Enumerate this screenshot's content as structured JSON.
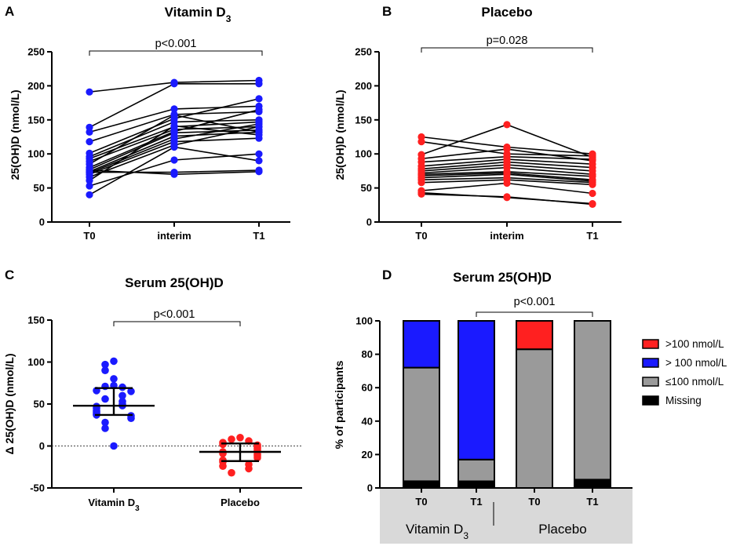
{
  "chart_data": [
    {
      "panel": "A",
      "type": "line",
      "title": "Vitamin D",
      "title_sub": "3",
      "xlabel": "",
      "ylabel": "25(OH)D (nmol/L)",
      "categories": [
        "T0",
        "interim",
        "T1"
      ],
      "ylim": [
        0,
        250
      ],
      "yticks": [
        0,
        50,
        100,
        150,
        200,
        250
      ],
      "marker_color": "#1a1aff",
      "p_label": "p<0.001",
      "series": [
        {
          "name": "1",
          "values": [
            191,
            205,
            208
          ]
        },
        {
          "name": "2",
          "values": [
            139,
            203,
            203
          ]
        },
        {
          "name": "3",
          "values": [
            132,
            166,
            170
          ]
        },
        {
          "name": "4",
          "values": [
            118,
            158,
            162
          ]
        },
        {
          "name": "5",
          "values": [
            101,
            152,
            181
          ]
        },
        {
          "name": "6",
          "values": [
            96,
            147,
            150
          ]
        },
        {
          "name": "7",
          "values": [
            93,
            140,
            147
          ]
        },
        {
          "name": "8",
          "values": [
            89,
            136,
            140
          ]
        },
        {
          "name": "9",
          "values": [
            80,
            133,
            165
          ]
        },
        {
          "name": "10",
          "values": [
            77,
            131,
            135
          ]
        },
        {
          "name": "11",
          "values": [
            74,
            126,
            132
          ]
        },
        {
          "name": "12",
          "values": [
            72,
            122,
            144
          ]
        },
        {
          "name": "13",
          "values": [
            70,
            118,
            123
          ]
        },
        {
          "name": "14",
          "values": [
            66,
            113,
            140
          ]
        },
        {
          "name": "15",
          "values": [
            76,
            70,
            74
          ]
        },
        {
          "name": "16",
          "values": [
            73,
            73,
            76
          ]
        },
        {
          "name": "17",
          "values": [
            53,
            91,
            100
          ]
        },
        {
          "name": "18",
          "values": [
            40,
            110,
            90
          ]
        },
        {
          "name": "19",
          "values": [
            61,
            141,
            128
          ]
        },
        {
          "name": "20",
          "values": [
            85,
            157,
            132
          ]
        }
      ]
    },
    {
      "panel": "B",
      "type": "line",
      "title": "Placebo",
      "xlabel": "",
      "ylabel": "25(OH)D (nmol/L)",
      "categories": [
        "T0",
        "interim",
        "T1"
      ],
      "ylim": [
        0,
        250
      ],
      "yticks": [
        0,
        50,
        100,
        150,
        200,
        250
      ],
      "marker_color": "#ff2020",
      "p_label": "p=0.028",
      "series": [
        {
          "name": "1",
          "values": [
            125,
            110,
            100
          ]
        },
        {
          "name": "2",
          "values": [
            118,
            100,
            97
          ]
        },
        {
          "name": "3",
          "values": [
            99,
            143,
            95
          ]
        },
        {
          "name": "4",
          "values": [
            93,
            107,
            90
          ]
        },
        {
          "name": "5",
          "values": [
            88,
            96,
            92
          ]
        },
        {
          "name": "6",
          "values": [
            82,
            92,
            85
          ]
        },
        {
          "name": "7",
          "values": [
            78,
            88,
            80
          ]
        },
        {
          "name": "8",
          "values": [
            75,
            84,
            75
          ]
        },
        {
          "name": "9",
          "values": [
            72,
            80,
            70
          ]
        },
        {
          "name": "10",
          "values": [
            70,
            74,
            67
          ]
        },
        {
          "name": "11",
          "values": [
            68,
            72,
            62
          ]
        },
        {
          "name": "12",
          "values": [
            65,
            70,
            60
          ]
        },
        {
          "name": "13",
          "values": [
            62,
            65,
            58
          ]
        },
        {
          "name": "14",
          "values": [
            58,
            62,
            55
          ]
        },
        {
          "name": "15",
          "values": [
            46,
            57,
            42
          ]
        },
        {
          "name": "16",
          "values": [
            43,
            36,
            27
          ]
        },
        {
          "name": "17",
          "values": [
            41,
            37,
            26
          ]
        }
      ]
    },
    {
      "panel": "C",
      "type": "scatter",
      "title": "Serum 25(OH)D",
      "xlabel": "",
      "ylabel": "Δ 25(OH)D (nmol/L)",
      "categories": [
        "Vitamin D",
        "Placebo"
      ],
      "category_sub": [
        "3",
        ""
      ],
      "ylim": [
        -50,
        150
      ],
      "yticks": [
        -50,
        0,
        50,
        100,
        150
      ],
      "p_label": "p<0.001",
      "groups": [
        {
          "name": "Vitamin D3",
          "color": "#1a1aff",
          "median": 48,
          "iqr": [
            37,
            69
          ],
          "points": [
            101,
            97,
            90,
            80,
            72,
            71,
            70,
            66,
            65,
            60,
            56,
            53,
            50,
            48,
            47,
            45,
            42,
            40,
            38,
            37,
            36,
            33,
            28,
            21,
            0
          ]
        },
        {
          "name": "Placebo",
          "color": "#ff2020",
          "median": -7,
          "iqr": [
            -18,
            3
          ],
          "points": [
            10,
            8,
            6,
            4,
            2,
            1,
            -1,
            -3,
            -5,
            -7,
            -9,
            -10,
            -12,
            -14,
            -17,
            -19,
            -22,
            -24,
            -27,
            -32
          ]
        }
      ]
    },
    {
      "panel": "D",
      "type": "bar",
      "title": "Serum 25(OH)D",
      "xlabel": "",
      "ylabel": "% of participants",
      "categories": [
        "T0",
        "T1",
        "T0",
        "T1"
      ],
      "groups": [
        {
          "label": "Vitamin D",
          "sub": "3"
        },
        {
          "label": "Placebo",
          "sub": ""
        }
      ],
      "ylim": [
        0,
        100
      ],
      "yticks": [
        0,
        20,
        40,
        60,
        80,
        100
      ],
      "p_label": "p<0.001",
      "series": [
        {
          "name": "Missing",
          "color": "#000000",
          "values": [
            4,
            4,
            0,
            5
          ]
        },
        {
          "name": "≤100 nmol/L",
          "color": "#9a9a9a",
          "values": [
            68,
            13,
            83,
            95
          ]
        },
        {
          "name": "> 100 nmol/L",
          "color": "#1a1aff",
          "values": [
            28,
            83,
            0,
            0
          ]
        },
        {
          "name": ">100 nmol/L",
          "color": "#ff2020",
          "values": [
            0,
            0,
            17,
            0
          ]
        }
      ],
      "legend": [
        {
          "label": ">100 nmol/L",
          "color": "#ff2020"
        },
        {
          "label": "> 100 nmol/L",
          "color": "#1a1aff"
        },
        {
          "label": "≤100 nmol/L",
          "color": "#9a9a9a"
        },
        {
          "label": "Missing",
          "color": "#000000"
        }
      ]
    }
  ]
}
